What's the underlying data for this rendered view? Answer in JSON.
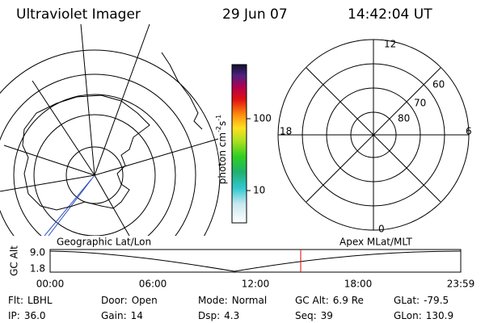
{
  "header": {
    "title": "Ultraviolet Imager",
    "date": "29 Jun 07",
    "time": "14:42:04 UT"
  },
  "colorbar": {
    "label": "photon cm",
    "exp1": "-2",
    "unit2": "s",
    "exp2": "-1",
    "ticks": [
      "100",
      "10"
    ]
  },
  "polar": {
    "mlt_labels": [
      "12",
      "18",
      "6",
      "0"
    ],
    "lat_labels": [
      "60",
      "70",
      "80"
    ]
  },
  "timeline": {
    "left_label": "Geographic Lat/Lon",
    "right_label": "Apex MLat/MLT",
    "y_label": "GC Alt",
    "yticks": [
      "9.0",
      "1.8"
    ],
    "xticks": [
      "00:00",
      "06:00",
      "12:00",
      "18:00",
      "23:59"
    ]
  },
  "info": [
    [
      {
        "label": "Flt:",
        "value": "LBHL"
      },
      {
        "label": "Door:",
        "value": "Open"
      },
      {
        "label": "Mode:",
        "value": "Normal"
      },
      {
        "label": "GC Alt:",
        "value": "6.9 Re"
      },
      {
        "label": "GLat:",
        "value": "-79.5"
      }
    ],
    [
      {
        "label": "IP:",
        "value": "36.0"
      },
      {
        "label": "Gain:",
        "value": "14"
      },
      {
        "label": "Dsp:",
        "value": "4.3"
      },
      {
        "label": "Seq:",
        "value": "39"
      },
      {
        "label": "GLon:",
        "value": "130.9"
      }
    ]
  ]
}
